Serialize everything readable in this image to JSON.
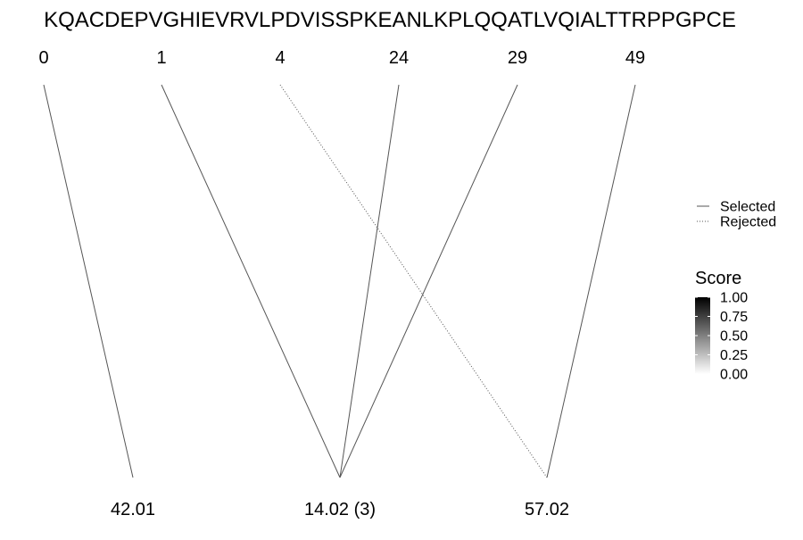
{
  "sequence": "KQACDEPVGHIEVRVLPDVISSPKEANLKPLQQATLVQIALTTRPPGPCE",
  "positions": [
    "0",
    "1",
    "4",
    "24",
    "29",
    "49"
  ],
  "masses": [
    "42.01",
    "14.02 (3)",
    "57.02"
  ],
  "links": [
    {
      "from": 0,
      "to": 0,
      "status": "selected",
      "score": 1.0
    },
    {
      "from": 1,
      "to": 1,
      "status": "selected",
      "score": 1.0
    },
    {
      "from": 2,
      "to": 2,
      "status": "rejected",
      "score": 1.0
    },
    {
      "from": 3,
      "to": 1,
      "status": "selected",
      "score": 1.0
    },
    {
      "from": 4,
      "to": 1,
      "status": "selected",
      "score": 1.0
    },
    {
      "from": 5,
      "to": 2,
      "status": "selected",
      "score": 1.0
    }
  ],
  "legend": {
    "linetype": {
      "selected": "Selected",
      "rejected": "Rejected"
    },
    "score": {
      "title": "Score",
      "ticks": [
        "1.00",
        "0.75",
        "0.50",
        "0.25",
        "0.00"
      ],
      "color_high": "#000000",
      "color_low": "#ffffff"
    }
  },
  "colors": {
    "line": "#555555",
    "background": "#ffffff"
  }
}
